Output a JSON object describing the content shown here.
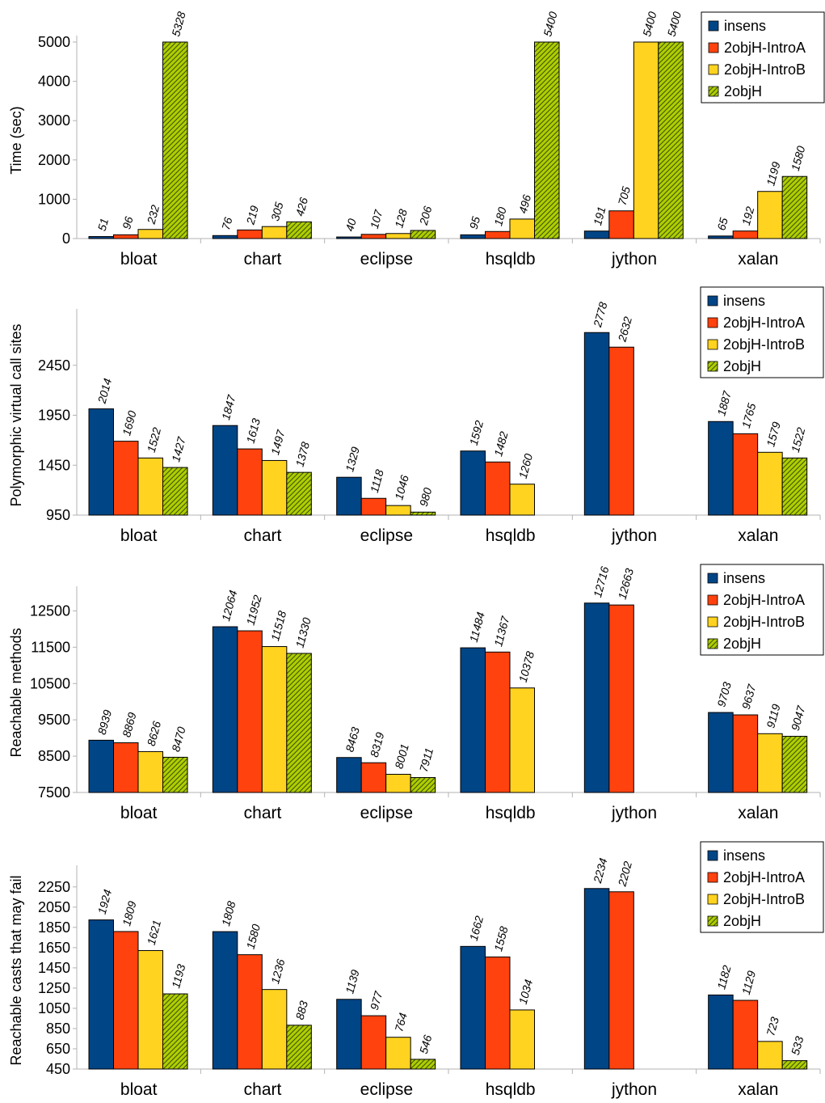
{
  "legend_order": [
    "insens",
    "2objH-IntroA",
    "2objH-IntroB",
    "2objH"
  ],
  "series_colors": {
    "insens": "#004586",
    "2objH-IntroA": "#ff420e",
    "2objH-IntroB": "#ffd320",
    "2objH": "#aecf00"
  },
  "chart_data": [
    {
      "type": "bar",
      "categories": [
        "bloat",
        "chart",
        "eclipse",
        "hsqldb",
        "jython",
        "xalan"
      ],
      "ylabel": "Time (sec)",
      "ylim": [
        0,
        5000
      ],
      "yticks": [
        0,
        1000,
        2000,
        3000,
        4000,
        5000
      ],
      "grid": false,
      "legend": "top-right",
      "series": [
        {
          "name": "insens",
          "values": [
            51,
            76,
            40,
            95,
            191,
            65
          ]
        },
        {
          "name": "2objH-IntroA",
          "values": [
            96,
            219,
            107,
            180,
            705,
            192
          ]
        },
        {
          "name": "2objH-IntroB",
          "values": [
            232,
            305,
            128,
            496,
            5400,
            1199
          ]
        },
        {
          "name": "2objH",
          "values": [
            5328,
            426,
            206,
            5400,
            5400,
            1580
          ]
        }
      ]
    },
    {
      "type": "bar",
      "categories": [
        "bloat",
        "chart",
        "eclipse",
        "hsqldb",
        "jython",
        "xalan"
      ],
      "ylabel": "Polymorphic virtual call sites",
      "ylim": [
        950,
        2950
      ],
      "yticks": [
        950,
        1450,
        1950,
        2450
      ],
      "grid": false,
      "legend": "top-right",
      "series": [
        {
          "name": "insens",
          "values": [
            2014,
            1847,
            1329,
            1592,
            2778,
            1887
          ]
        },
        {
          "name": "2objH-IntroA",
          "values": [
            1690,
            1613,
            1118,
            1482,
            2632,
            1765
          ]
        },
        {
          "name": "2objH-IntroB",
          "values": [
            1522,
            1497,
            1046,
            1260,
            null,
            1579
          ]
        },
        {
          "name": "2objH",
          "values": [
            1427,
            1378,
            980,
            null,
            null,
            1522
          ]
        }
      ]
    },
    {
      "type": "bar",
      "categories": [
        "bloat",
        "chart",
        "eclipse",
        "hsqldb",
        "jython",
        "xalan"
      ],
      "ylabel": "Reachable methods",
      "ylim": [
        7500,
        13000
      ],
      "yticks": [
        7500,
        8500,
        9500,
        10500,
        11500,
        12500
      ],
      "grid": false,
      "legend": "top-right",
      "series": [
        {
          "name": "insens",
          "values": [
            8939,
            12064,
            8463,
            11484,
            12716,
            9703
          ]
        },
        {
          "name": "2objH-IntroA",
          "values": [
            8869,
            11952,
            8319,
            11367,
            12663,
            9637
          ]
        },
        {
          "name": "2objH-IntroB",
          "values": [
            8626,
            11518,
            8001,
            10378,
            null,
            9119
          ]
        },
        {
          "name": "2objH",
          "values": [
            8470,
            11330,
            7911,
            null,
            null,
            9047
          ]
        }
      ]
    },
    {
      "type": "bar",
      "categories": [
        "bloat",
        "chart",
        "eclipse",
        "hsqldb",
        "jython",
        "xalan"
      ],
      "ylabel": "Reachable casts that may fail",
      "ylim": [
        450,
        2400
      ],
      "yticks": [
        450,
        650,
        850,
        1050,
        1250,
        1450,
        1650,
        1850,
        2050,
        2250
      ],
      "grid": false,
      "legend": "top-right",
      "series": [
        {
          "name": "insens",
          "values": [
            1924,
            1808,
            1139,
            1662,
            2234,
            1182
          ]
        },
        {
          "name": "2objH-IntroA",
          "values": [
            1809,
            1580,
            977,
            1558,
            2202,
            1129
          ]
        },
        {
          "name": "2objH-IntroB",
          "values": [
            1621,
            1236,
            764,
            1034,
            null,
            723
          ]
        },
        {
          "name": "2objH",
          "values": [
            1193,
            883,
            546,
            null,
            null,
            533
          ]
        }
      ]
    }
  ]
}
